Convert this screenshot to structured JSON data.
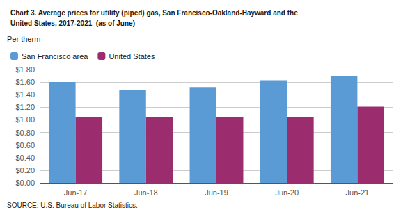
{
  "chart_data": {
    "type": "bar",
    "title": "Chart 3. Average prices for utility (piped) gas, San Francisco-Oakland-Hayward and the\nUnited States, 2017-2021  (as of June)",
    "ylabel": "Per therm",
    "annotations": [
      "SOURCE: U.S. Bureau of Labor Statistics."
    ],
    "categories": [
      "Jun-17",
      "Jun-18",
      "Jun-19",
      "Jun-20",
      "Jun-21"
    ],
    "series": [
      {
        "name": "San Francisco area",
        "color": "#5B9BD5",
        "values": [
          1.6,
          1.48,
          1.52,
          1.63,
          1.69
        ]
      },
      {
        "name": "United States",
        "color": "#9B2C6E",
        "values": [
          1.04,
          1.04,
          1.04,
          1.05,
          1.21
        ]
      }
    ],
    "ylim": [
      0,
      1.8
    ],
    "yticks": [
      {
        "value": 0.0,
        "label": "$0.00"
      },
      {
        "value": 0.2,
        "label": "$0.20"
      },
      {
        "value": 0.4,
        "label": "$0.40"
      },
      {
        "value": 0.6,
        "label": "$0.60"
      },
      {
        "value": 0.8,
        "label": "$0.80"
      },
      {
        "value": 1.0,
        "label": "$1.00"
      },
      {
        "value": 1.2,
        "label": "$1.20"
      },
      {
        "value": 1.4,
        "label": "$1.40"
      },
      {
        "value": 1.6,
        "label": "$1.60"
      },
      {
        "value": 1.8,
        "label": "$1.80"
      }
    ],
    "grid": true,
    "legend": "upper left"
  }
}
